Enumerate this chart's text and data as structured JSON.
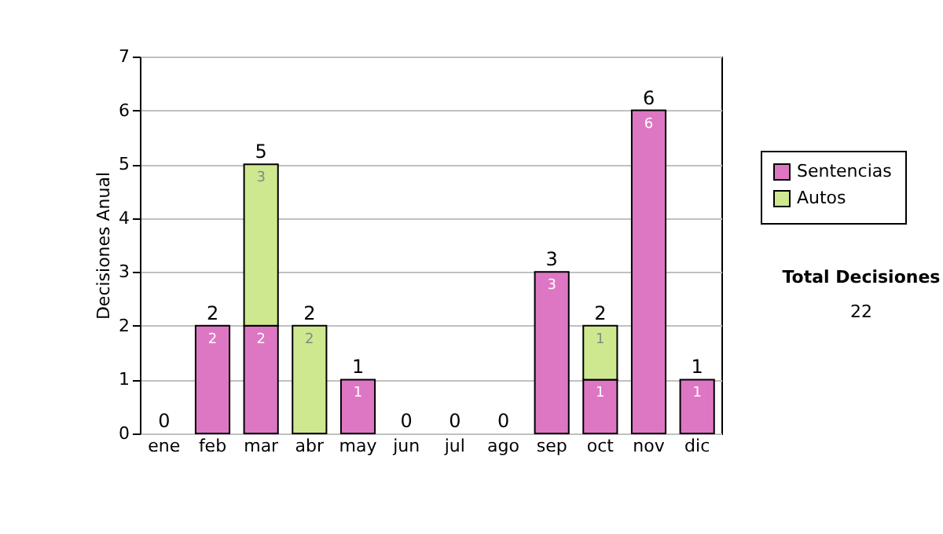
{
  "chart_data": {
    "type": "bar",
    "stacked": true,
    "ylabel": "Decisiones Anual",
    "categories": [
      "ene",
      "feb",
      "mar",
      "abr",
      "may",
      "jun",
      "jul",
      "ago",
      "sep",
      "oct",
      "nov",
      "dic"
    ],
    "series": [
      {
        "name": "Sentencias",
        "color": "#dd77c4",
        "values": [
          0,
          2,
          2,
          0,
          1,
          0,
          0,
          0,
          3,
          1,
          6,
          1
        ],
        "value_labels": [
          null,
          "2",
          "2",
          null,
          "1",
          null,
          null,
          null,
          "3",
          "1",
          "6",
          "1"
        ]
      },
      {
        "name": "Autos",
        "color": "#cde88f",
        "values": [
          0,
          0,
          3,
          2,
          0,
          0,
          0,
          0,
          0,
          1,
          0,
          0
        ],
        "value_labels": [
          null,
          null,
          "3",
          "2",
          null,
          null,
          null,
          null,
          null,
          "1",
          null,
          null
        ]
      }
    ],
    "totals": [
      "0",
      "2",
      "5",
      "2",
      "1",
      "0",
      "0",
      "0",
      "3",
      "2",
      "6",
      "1"
    ],
    "ylim": [
      0,
      7
    ],
    "yticks": [
      0,
      1,
      2,
      3,
      4,
      5,
      6,
      7
    ],
    "grid": "y",
    "legend": "right",
    "annotations": [
      "Total Decisiones",
      "22"
    ]
  }
}
